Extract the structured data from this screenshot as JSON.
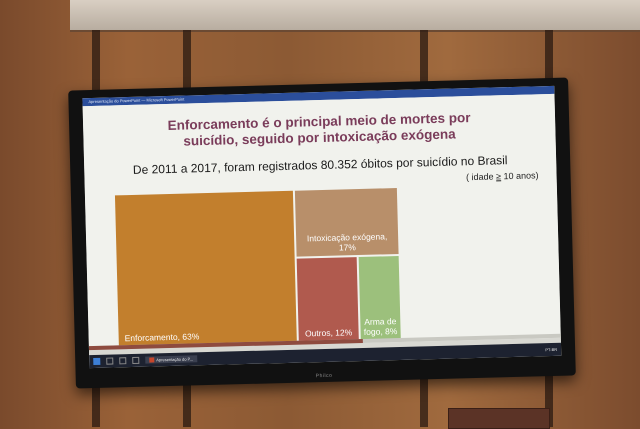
{
  "window": {
    "title": "Apresentação do PowerPoint — Microsoft PowerPoint"
  },
  "slide": {
    "title_line1": "Enforcamento é o principal meio de mortes por",
    "title_line2": "suicídio, seguido por intoxicação exógena",
    "subtitle": "De 2011 a 2017, foram registrados 80.352 óbitos por suicídio no Brasil",
    "note_prefix": "( idade ",
    "note_ge": "≥",
    "note_suffix": " 10 anos)"
  },
  "treemap": {
    "cells": [
      {
        "label": "Enforcamento, 63%",
        "value": 63,
        "color": "#c27f2d"
      },
      {
        "label_line1": "Intoxicação exógena,",
        "label_line2": "17%",
        "value": 17,
        "color": "#b88f6a"
      },
      {
        "label": "Outros, 12%",
        "value": 12,
        "color": "#b05a4e"
      },
      {
        "label_line1": "Arma de",
        "label_line2": "fogo, 8%",
        "value": 8,
        "color": "#9cc07c"
      }
    ]
  },
  "progress": {
    "fraction": 0.58
  },
  "taskbar": {
    "task_label": "Apresentação do P...",
    "tray_text": "PT-BR"
  },
  "tv": {
    "brand": "Philco"
  }
}
